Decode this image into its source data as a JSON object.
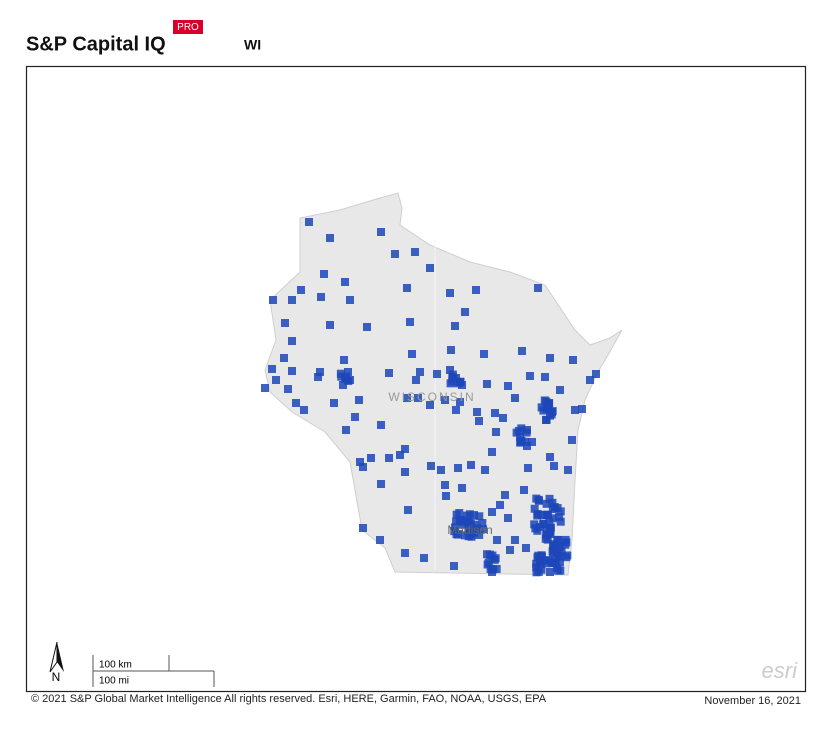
{
  "header": {
    "brand": "S&P Capital IQ",
    "badge": "PRO",
    "title": "WI"
  },
  "map": {
    "state_label": "WISCONSIN",
    "city_label": "Madison",
    "north_label": "N",
    "scale_km": "100 km",
    "scale_mi": "100 mi",
    "attribution_logo": "esri"
  },
  "footer": {
    "copyright": "© 2021 S&P Global Market Intelligence All rights reserved. Esri, HERE, Garmin, FAO, NOAA, USGS, EPA",
    "date": "November 16, 2021"
  }
}
